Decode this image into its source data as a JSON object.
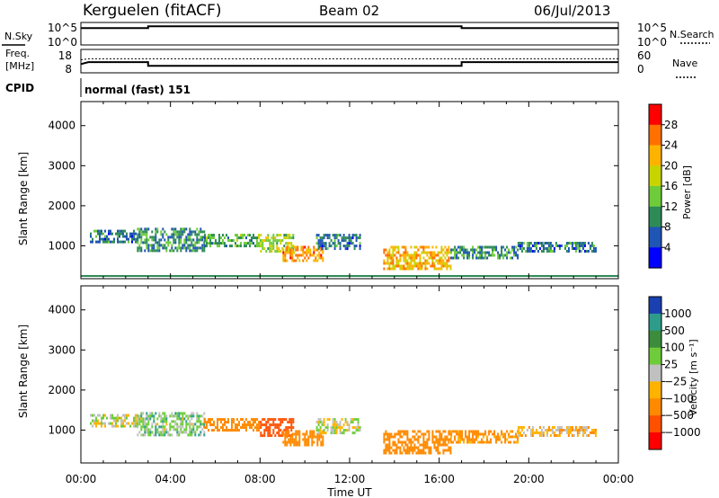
{
  "header": {
    "station": "Kerguelen (fitACF)",
    "beam": "Beam 02",
    "date": "06/Jul/2013"
  },
  "panels": {
    "nsky": {
      "left_label": "N.Sky",
      "right_label": "N.Search",
      "left_ticks": [
        "10^5",
        "10^0"
      ],
      "right_ticks": [
        "10^5",
        "10^0"
      ]
    },
    "freq": {
      "left_label_1": "Freq.",
      "left_label_2": "[MHz]",
      "right_label": "Nave",
      "left_ticks": [
        "18",
        "8"
      ],
      "right_ticks": [
        "60",
        "0"
      ]
    },
    "cpid": {
      "label": "CPID",
      "mode": "normal (fast) 151"
    }
  },
  "chart_data": [
    {
      "type": "line",
      "title": "N.Sky / N.Search",
      "x": [
        "00:00",
        "03:00",
        "03:00",
        "17:00",
        "17:00",
        "24:00"
      ],
      "series": [
        {
          "name": "N.Sky",
          "values": [
            10000,
            10000,
            30000,
            30000,
            10000,
            10000
          ]
        }
      ],
      "ylim": [
        1,
        100000
      ],
      "scale": "log"
    },
    {
      "type": "line",
      "title": "Freq. / Nave",
      "x": [
        "00:00",
        "00:20",
        "03:00",
        "03:00",
        "17:00",
        "17:00",
        "24:00"
      ],
      "series": [
        {
          "name": "Freq. [MHz]",
          "values": [
            11.5,
            12.5,
            12.5,
            10.6,
            10.6,
            12.5,
            12.5
          ]
        },
        {
          "name": "Nave",
          "values": [
            34,
            37,
            37,
            37,
            37,
            37,
            37
          ]
        }
      ],
      "ylim": [
        8,
        18
      ]
    },
    {
      "type": "heatmap",
      "title": "Power",
      "xlabel": "Time UT",
      "ylabel": "Slant Range [km]",
      "xlim": [
        0,
        24
      ],
      "ylim": [
        180,
        4600
      ],
      "x_ticks": [
        "00:00",
        "04:00",
        "08:00",
        "12:00",
        "16:00",
        "20:00",
        "00:00"
      ],
      "y_ticks": [
        "1000",
        "2000",
        "3000",
        "4000"
      ],
      "colorbar_label": "Power [dB]",
      "colorbar_ticks": [
        "4",
        "8",
        "12",
        "16",
        "20",
        "24",
        "28"
      ],
      "colorbar_colors": [
        "#0000ff",
        "#1f55b4",
        "#2e8b57",
        "#6ecc3a",
        "#c8d400",
        "#ffb300",
        "#ff7000",
        "#ff0000"
      ],
      "regions": [
        {
          "t0": 0.4,
          "t1": 2.5,
          "r0": 1100,
          "r1": 1400,
          "value": 8
        },
        {
          "t0": 2.5,
          "t1": 5.5,
          "r0": 900,
          "r1": 1450,
          "value": 10
        },
        {
          "t0": 5.5,
          "t1": 8.0,
          "r0": 1000,
          "r1": 1300,
          "value": 12
        },
        {
          "t0": 8.0,
          "t1": 9.5,
          "r0": 850,
          "r1": 1300,
          "value": 16
        },
        {
          "t0": 9.0,
          "t1": 10.8,
          "r0": 650,
          "r1": 1000,
          "value": 24
        },
        {
          "t0": 10.5,
          "t1": 12.5,
          "r0": 950,
          "r1": 1300,
          "value": 8
        },
        {
          "t0": 13.5,
          "t1": 16.5,
          "r0": 400,
          "r1": 1000,
          "value": 22
        },
        {
          "t0": 16.5,
          "t1": 19.5,
          "r0": 700,
          "r1": 1000,
          "value": 10
        },
        {
          "t0": 19.5,
          "t1": 23.0,
          "r0": 850,
          "r1": 1100,
          "value": 8
        }
      ]
    },
    {
      "type": "heatmap",
      "title": "Velocity",
      "xlabel": "Time UT",
      "ylabel": "Slant Range [km]",
      "xlim": [
        0,
        24
      ],
      "ylim": [
        180,
        4600
      ],
      "x_ticks": [
        "00:00",
        "04:00",
        "08:00",
        "12:00",
        "16:00",
        "20:00",
        "00:00"
      ],
      "y_ticks": [
        "1000",
        "2000",
        "3000",
        "4000"
      ],
      "colorbar_label": "Velocity [m s⁻¹]",
      "colorbar_ticks": [
        "1000",
        "500",
        "100",
        "25",
        "−25",
        "−100",
        "−500",
        "−1000"
      ],
      "colorbar_colors": [
        "#1a3fb0",
        "#2e9c8a",
        "#3b8c3b",
        "#6ecc3a",
        "#c0c0c0",
        "#ffb300",
        "#ff8a00",
        "#ff5000",
        "#ff0000"
      ],
      "regions": [
        {
          "t0": 0.4,
          "t1": 2.5,
          "r0": 1100,
          "r1": 1400,
          "value": 0
        },
        {
          "t0": 2.5,
          "t1": 5.5,
          "r0": 900,
          "r1": 1450,
          "value": 50
        },
        {
          "t0": 5.5,
          "t1": 8.0,
          "r0": 1000,
          "r1": 1300,
          "value": -200
        },
        {
          "t0": 8.0,
          "t1": 9.5,
          "r0": 850,
          "r1": 1300,
          "value": -700
        },
        {
          "t0": 9.0,
          "t1": 10.8,
          "r0": 650,
          "r1": 1000,
          "value": -300
        },
        {
          "t0": 10.5,
          "t1": 12.5,
          "r0": 950,
          "r1": 1300,
          "value": 0
        },
        {
          "t0": 13.5,
          "t1": 16.5,
          "r0": 400,
          "r1": 1000,
          "value": -200
        },
        {
          "t0": 16.5,
          "t1": 19.5,
          "r0": 700,
          "r1": 1000,
          "value": -150
        },
        {
          "t0": 19.5,
          "t1": 23.0,
          "r0": 850,
          "r1": 1100,
          "value": -60
        }
      ]
    }
  ]
}
